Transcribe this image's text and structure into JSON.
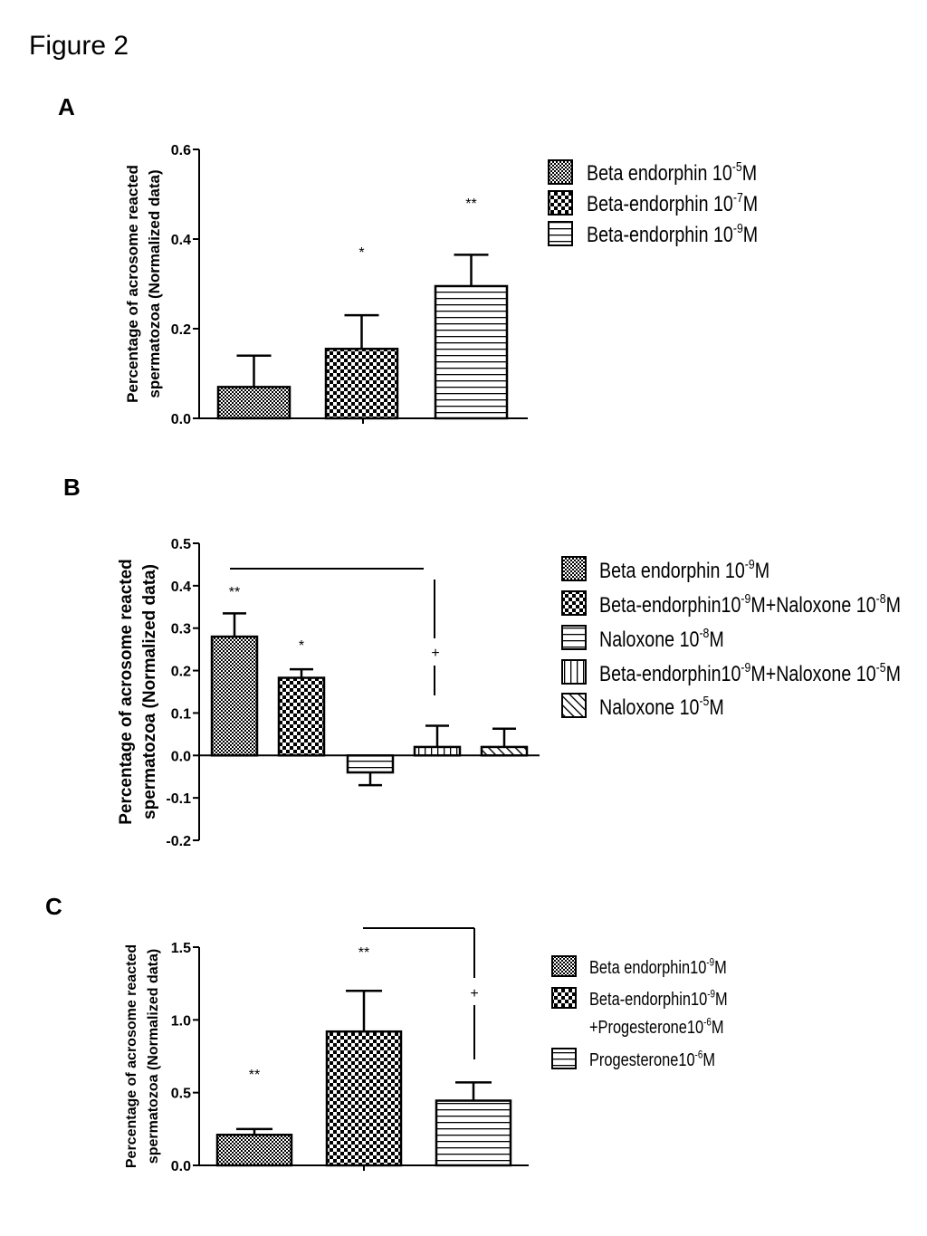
{
  "figure_title": "Figure 2",
  "chart_data": [
    {
      "panel": "A",
      "type": "bar",
      "ylabel_line1": "Percentage of acrosome reacted",
      "ylabel_line2": "spermatozoa (Normalized data)",
      "ylim": [
        0,
        0.6
      ],
      "yticks": [
        "0.0",
        "0.2",
        "0.4",
        "0.6"
      ],
      "grid": false,
      "legend_position": "right",
      "series": [
        {
          "name": "Beta endorphin 10-5M",
          "base": "Beta endorphin 10",
          "sup": "-5",
          "tail": "M",
          "value": 0.07,
          "err": 0.07,
          "sig": "",
          "pattern": "dots"
        },
        {
          "name": "Beta-endorphin 10-7M",
          "base": "Beta-endorphin 10",
          "sup": "-7",
          "tail": "M",
          "value": 0.155,
          "err": 0.075,
          "sig": "*",
          "pattern": "checker"
        },
        {
          "name": "Beta-endorphin 10-9M",
          "base": "Beta-endorphin 10",
          "sup": "-9",
          "tail": "M",
          "value": 0.295,
          "err": 0.07,
          "sig": "**",
          "pattern": "hlines"
        }
      ]
    },
    {
      "panel": "B",
      "type": "bar",
      "ylabel_line1": "Percentage of acrosome reacted",
      "ylabel_line2": "spermatozoa (Normalized data)",
      "ylim": [
        -0.2,
        0.5
      ],
      "yticks": [
        "-0.2",
        "-0.1",
        "0.0",
        "0.1",
        "0.2",
        "0.3",
        "0.4",
        "0.5"
      ],
      "grid": false,
      "legend_position": "right",
      "bracket_mark": "+",
      "series": [
        {
          "name": "Beta endorphin 10-9M",
          "legend_parts": [
            "Beta endorphin 10",
            "-9",
            "M"
          ],
          "value": 0.28,
          "err": 0.055,
          "sig": "**",
          "pattern": "dots"
        },
        {
          "name": "Beta-endorphin10-9M+Naloxone 10-8M",
          "legend_parts": [
            "Beta-endorphin10",
            "-9",
            "M+Naloxone 10",
            "-8",
            "M"
          ],
          "value": 0.183,
          "err": 0.02,
          "sig": "*",
          "pattern": "checker"
        },
        {
          "name": "Naloxone 10-8M",
          "legend_parts": [
            "Naloxone 10",
            "-8",
            "M"
          ],
          "value": -0.04,
          "err": 0.03,
          "sig": "",
          "pattern": "hlines"
        },
        {
          "name": "Beta-endorphin10-9M+Naloxone 10-5M",
          "legend_parts": [
            "Beta-endorphin10",
            "-9",
            "M+Naloxone 10",
            "-5",
            "M"
          ],
          "value": 0.02,
          "err": 0.05,
          "sig": "",
          "pattern": "vlines"
        },
        {
          "name": "Naloxone 10-5M",
          "legend_parts": [
            "Naloxone 10",
            "-5",
            "M"
          ],
          "value": 0.02,
          "err": 0.043,
          "sig": "",
          "pattern": "diag"
        }
      ]
    },
    {
      "panel": "C",
      "type": "bar",
      "ylabel_line1": "Percentage of acrosome reacted",
      "ylabel_line2": "spermatozoa (Normalized data)",
      "ylim": [
        0,
        1.5
      ],
      "yticks": [
        "0.0",
        "0.5",
        "1.0",
        "1.5"
      ],
      "grid": false,
      "legend_position": "right",
      "bracket_mark": "+",
      "series": [
        {
          "name": "Beta endorphin10-9M",
          "value": 0.21,
          "err": 0.04,
          "sig": "**",
          "pattern": "dots"
        },
        {
          "name": "Beta-endorphin10-9M +Progesterone10-6M",
          "value": 0.92,
          "err": 0.28,
          "sig": "**",
          "pattern": "checker"
        },
        {
          "name": "Progesterone10-6M",
          "value": 0.445,
          "err": 0.125,
          "sig": "",
          "pattern": "hlines"
        }
      ],
      "legend_lines": [
        {
          "parts": [
            "Beta endorphin10",
            "-9",
            "M"
          ]
        },
        {
          "parts": [
            "Beta-endorphin10",
            "-9",
            "M"
          ]
        },
        {
          "parts": [
            "+Progesterone10",
            "-6",
            "M"
          ]
        },
        {
          "parts": [
            "Progesterone10",
            "-6",
            "M"
          ]
        }
      ]
    }
  ]
}
